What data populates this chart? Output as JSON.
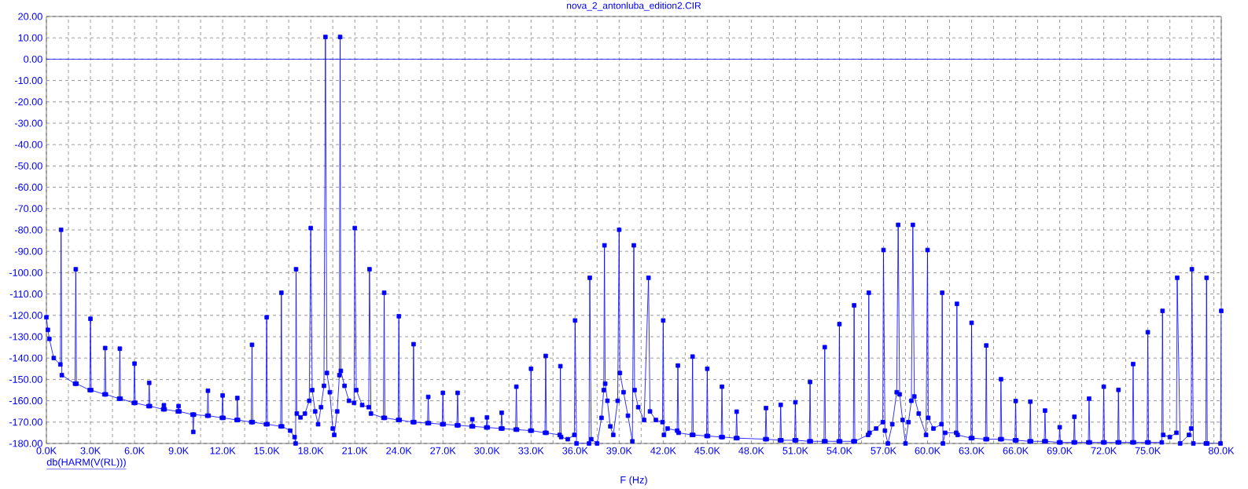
{
  "chart_data": {
    "type": "line",
    "title": "nova_2_antonluba_edition2.CIR",
    "xlabel": "F (Hz)",
    "xlim": [
      0,
      80000
    ],
    "ylim": [
      -180,
      20
    ],
    "xticks": [
      {
        "value": 0,
        "label": "0.0K"
      },
      {
        "value": 1500,
        "label": null
      },
      {
        "value": 3000,
        "label": "3.0K"
      },
      {
        "value": 4500,
        "label": null
      },
      {
        "value": 6000,
        "label": "6.0K"
      },
      {
        "value": 7500,
        "label": null
      },
      {
        "value": 9000,
        "label": "9.0K"
      },
      {
        "value": 10500,
        "label": null
      },
      {
        "value": 12000,
        "label": "12.0K"
      },
      {
        "value": 13500,
        "label": null
      },
      {
        "value": 15000,
        "label": "15.0K"
      },
      {
        "value": 16500,
        "label": null
      },
      {
        "value": 18000,
        "label": "18.0K"
      },
      {
        "value": 19500,
        "label": null
      },
      {
        "value": 21000,
        "label": "21.0K"
      },
      {
        "value": 22500,
        "label": null
      },
      {
        "value": 24000,
        "label": "24.0K"
      },
      {
        "value": 25500,
        "label": null
      },
      {
        "value": 27000,
        "label": "27.0K"
      },
      {
        "value": 28500,
        "label": null
      },
      {
        "value": 30000,
        "label": "30.0K"
      },
      {
        "value": 31500,
        "label": null
      },
      {
        "value": 33000,
        "label": "33.0K"
      },
      {
        "value": 34500,
        "label": null
      },
      {
        "value": 36000,
        "label": "36.0K"
      },
      {
        "value": 37500,
        "label": null
      },
      {
        "value": 39000,
        "label": "39.0K"
      },
      {
        "value": 40500,
        "label": null
      },
      {
        "value": 42000,
        "label": "42.0K"
      },
      {
        "value": 43500,
        "label": null
      },
      {
        "value": 45000,
        "label": "45.0K"
      },
      {
        "value": 46500,
        "label": null
      },
      {
        "value": 48000,
        "label": "48.0K"
      },
      {
        "value": 49500,
        "label": null
      },
      {
        "value": 51000,
        "label": "51.0K"
      },
      {
        "value": 52500,
        "label": null
      },
      {
        "value": 54000,
        "label": "54.0K"
      },
      {
        "value": 55500,
        "label": null
      },
      {
        "value": 57000,
        "label": "57.0K"
      },
      {
        "value": 58500,
        "label": null
      },
      {
        "value": 60000,
        "label": "60.0K"
      },
      {
        "value": 61500,
        "label": null
      },
      {
        "value": 63000,
        "label": "63.0K"
      },
      {
        "value": 64500,
        "label": null
      },
      {
        "value": 66000,
        "label": "66.0K"
      },
      {
        "value": 67500,
        "label": null
      },
      {
        "value": 69000,
        "label": "69.0K"
      },
      {
        "value": 70500,
        "label": null
      },
      {
        "value": 72000,
        "label": "72.0K"
      },
      {
        "value": 73500,
        "label": null
      },
      {
        "value": 75000,
        "label": "75.0K"
      },
      {
        "value": 76500,
        "label": null
      },
      {
        "value": 78000,
        "label": null
      },
      {
        "value": 79500,
        "label": null
      },
      {
        "value": 80000,
        "label": "80.0K"
      }
    ],
    "yticks": [
      {
        "value": 20,
        "label": "20.00"
      },
      {
        "value": 10,
        "label": "10.00"
      },
      {
        "value": 0,
        "label": "0.00"
      },
      {
        "value": -10,
        "label": "-10.00"
      },
      {
        "value": -20,
        "label": "-20.00"
      },
      {
        "value": -30,
        "label": "-30.00"
      },
      {
        "value": -40,
        "label": "-40.00"
      },
      {
        "value": -50,
        "label": "-50.00"
      },
      {
        "value": -60,
        "label": "-60.00"
      },
      {
        "value": -70,
        "label": "-70.00"
      },
      {
        "value": -80,
        "label": "-80.00"
      },
      {
        "value": -90,
        "label": "-90.00"
      },
      {
        "value": -100,
        "label": "-100.00"
      },
      {
        "value": -110,
        "label": "-110.00"
      },
      {
        "value": -120,
        "label": "-120.00"
      },
      {
        "value": -130,
        "label": "-130.00"
      },
      {
        "value": -140,
        "label": "-140.00"
      },
      {
        "value": -150,
        "label": "-150.00"
      },
      {
        "value": -160,
        "label": "-160.00"
      },
      {
        "value": -170,
        "label": "-170.00"
      },
      {
        "value": -180,
        "label": "-180.00"
      }
    ],
    "grid": true,
    "marker": "square",
    "legend": "bottom left",
    "ref_lines": [
      {
        "axis": "y",
        "value": 0,
        "color": "#0000ff"
      }
    ],
    "series": [
      {
        "name": "db(HARM(V(RL)))",
        "color": "#0000ff",
        "x": [
          0,
          100,
          200,
          500,
          950,
          1000,
          1050,
          1950,
          2000,
          2050,
          2950,
          3000,
          3050,
          3950,
          4000,
          4050,
          4950,
          5000,
          5050,
          5950,
          6000,
          6050,
          6950,
          7000,
          7050,
          7950,
          8000,
          8050,
          8950,
          9000,
          9050,
          9950,
          10000,
          10050,
          10950,
          11000,
          11050,
          11950,
          12000,
          12050,
          12950,
          13000,
          13050,
          13950,
          14000,
          14050,
          14950,
          15000,
          15050,
          15950,
          16000,
          16050,
          16600,
          16900,
          16970,
          17000,
          17050,
          17300,
          17600,
          17900,
          18000,
          18100,
          18300,
          18500,
          18700,
          18900,
          19000,
          19100,
          19300,
          19500,
          19600,
          19800,
          19950,
          20000,
          20050,
          20300,
          20600,
          20950,
          21000,
          21100,
          21500,
          21950,
          22000,
          22100,
          22950,
          23000,
          23050,
          23950,
          24000,
          24050,
          24950,
          25000,
          25050,
          25950,
          26000,
          26050,
          26950,
          27000,
          27050,
          27950,
          28000,
          28050,
          28950,
          29000,
          29050,
          29950,
          30000,
          30050,
          30950,
          31000,
          31050,
          31950,
          32000,
          32050,
          32950,
          33000,
          33050,
          33950,
          34000,
          34050,
          34950,
          35000,
          35050,
          35500,
          35950,
          36000,
          36100,
          36950,
          37000,
          37100,
          37500,
          37800,
          37950,
          38000,
          38050,
          38200,
          38400,
          38600,
          38900,
          39000,
          39050,
          39300,
          39600,
          39900,
          40000,
          40050,
          40300,
          40700,
          41000,
          41100,
          41500,
          41950,
          42000,
          42050,
          42300,
          42950,
          43000,
          43050,
          43950,
          44000,
          44050,
          44950,
          45000,
          45050,
          45950,
          46000,
          46050,
          46950,
          47000,
          47050,
          48950,
          49000,
          49050,
          49950,
          50000,
          50050,
          50950,
          51000,
          51050,
          51950,
          52000,
          52050,
          52950,
          53000,
          53050,
          53950,
          54000,
          54050,
          54950,
          55000,
          55050,
          55950,
          56000,
          56050,
          56500,
          56950,
          57000,
          57100,
          57300,
          57600,
          57900,
          58000,
          58100,
          58300,
          58500,
          58700,
          58900,
          59000,
          59100,
          59400,
          59900,
          60000,
          60050,
          60400,
          60950,
          61000,
          61050,
          61200,
          61950,
          62000,
          62050,
          62950,
          63000,
          63050,
          63950,
          64000,
          64050,
          64950,
          65000,
          65050,
          65950,
          66000,
          66050,
          66950,
          67000,
          67050,
          67950,
          68000,
          68050,
          68950,
          69000,
          69050,
          69950,
          70000,
          70050,
          70950,
          71000,
          71050,
          71950,
          72000,
          72050,
          72950,
          73000,
          73050,
          73950,
          74000,
          74050,
          74950,
          75000,
          75050,
          75950,
          76000,
          76050,
          76500,
          76950,
          77000,
          77200,
          77800,
          77950,
          78000,
          78100,
          78950,
          79000,
          79050,
          79950,
          80000
        ],
        "values": [
          -120.9,
          -126.8,
          -131,
          -140,
          -143,
          -79.9,
          -148,
          -152,
          -98.4,
          -152,
          -155,
          -121.6,
          -155,
          -157,
          -135.3,
          -157,
          -159,
          -135.6,
          -159,
          -161,
          -142.6,
          -161,
          -162.5,
          -151.6,
          -162.5,
          -164,
          -162.1,
          -164,
          -165,
          -162.5,
          -165,
          -166.5,
          -174.6,
          -166.5,
          -167,
          -155.3,
          -167,
          -168,
          -157.5,
          -168,
          -169,
          -158.7,
          -169,
          -170,
          -133.8,
          -170,
          -171,
          -120.9,
          -171,
          -172,
          -109.4,
          -172,
          -174,
          -177,
          -180,
          -98.4,
          -166,
          -167.8,
          -166,
          -160,
          -79.1,
          -155,
          -165,
          -171,
          -163,
          -153,
          10.4,
          -147,
          -156,
          -173,
          -176,
          -165,
          -148,
          10.4,
          -146,
          -153,
          -160,
          -161,
          -79.1,
          -155,
          -162,
          -163,
          -98.4,
          -166,
          -168,
          -109.4,
          -168,
          -169,
          -120.4,
          -169,
          -170,
          -133.5,
          -170,
          -170.5,
          -158.2,
          -170.5,
          -171,
          -156.3,
          -171,
          -171.5,
          -156.3,
          -171.5,
          -172,
          -168.7,
          -172,
          -172.5,
          -167.8,
          -172.5,
          -173,
          -165.6,
          -173,
          -173.5,
          -153.4,
          -173.5,
          -174,
          -145,
          -174,
          -175,
          -139,
          -175,
          -176,
          -143.8,
          -177,
          -178,
          -176,
          -122.4,
          -180,
          -180,
          -102.4,
          -178,
          -180,
          -168,
          -155,
          -87.2,
          -152,
          -160,
          -172,
          -176,
          -160,
          -79.9,
          -147,
          -156,
          -167,
          -179,
          -87.2,
          -155,
          -163,
          -169,
          -102.4,
          -165,
          -169,
          -170,
          -122.4,
          -176,
          -173,
          -174,
          -143.5,
          -175,
          -176,
          -139.3,
          -176,
          -176.5,
          -145,
          -176.5,
          -177,
          -153.4,
          -177,
          -177.5,
          -165.1,
          -177.5,
          -178,
          -163.4,
          -178,
          -178.5,
          -161.9,
          -178.5,
          -178.5,
          -160.7,
          -178.5,
          -179,
          -151.2,
          -179,
          -179,
          -134.9,
          -179,
          -179,
          -124.1,
          -179,
          -179,
          -115.3,
          -179,
          -176,
          -109.4,
          -175,
          -173,
          -170,
          -89.4,
          -174,
          -180,
          -171,
          -156,
          -77.6,
          -157,
          -169,
          -180,
          -170,
          -160,
          -77.6,
          -158,
          -166,
          -176,
          -89.4,
          -168,
          -173,
          -171,
          -109.4,
          -180,
          -175,
          -175,
          -114.6,
          -176,
          -177.5,
          -123.5,
          -177.5,
          -178,
          -134.1,
          -178,
          -178,
          -149.9,
          -178,
          -178.5,
          -160.1,
          -178.5,
          -179,
          -160.4,
          -179,
          -179,
          -164.6,
          -179,
          -179.5,
          -172.4,
          -179.5,
          -179.5,
          -167.5,
          -179.5,
          -179.5,
          -159,
          -179.5,
          -179.5,
          -153.4,
          -179.5,
          -179.5,
          -154.9,
          -179.5,
          -179.5,
          -142.8,
          -179.5,
          -179.5,
          -127.9,
          -179.5,
          -179.5,
          -117.9,
          -176,
          -177,
          -175,
          -102.4,
          -180,
          -176,
          -173,
          -98.4,
          -180,
          -180,
          -102.4,
          -180,
          -180,
          -117.9
        ]
      }
    ]
  }
}
